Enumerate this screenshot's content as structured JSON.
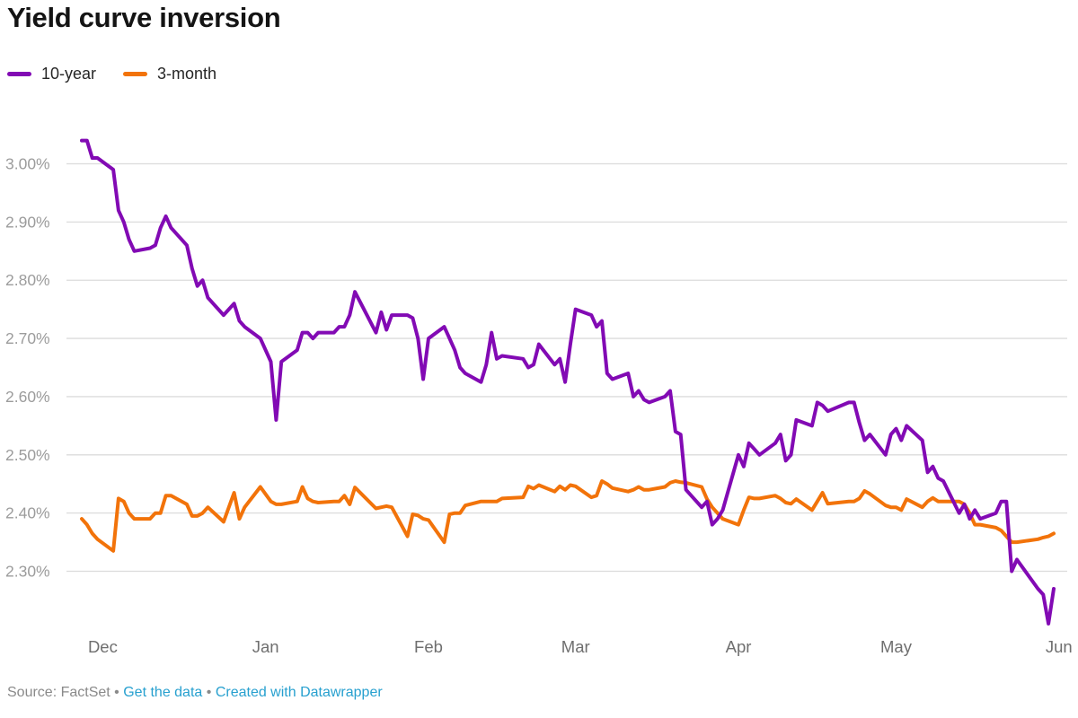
{
  "header": {
    "title": "Yield curve inversion"
  },
  "legend": {
    "items": [
      {
        "label": "10-year",
        "color": "#820ab4"
      },
      {
        "label": "3-month",
        "color": "#f2730a"
      }
    ]
  },
  "footer": {
    "source_text": "Source: FactSet",
    "separator": "•",
    "link_get_data": "Get the data",
    "link_datawrapper": "Created with Datawrapper",
    "link_color": "#27a0cf",
    "text_color": "#8a8a8a"
  },
  "chart_data": {
    "type": "line",
    "title": "Yield curve inversion",
    "grid": "horizontal",
    "legend_position": "top-left",
    "y_unit": "%",
    "ylim": [
      2.18,
      3.07
    ],
    "xlim_days": [
      0,
      186
    ],
    "x_unit": "calendar-day offset from first observation (late Nov); points are weekday yields",
    "x_ticks": [
      {
        "label": "Dec",
        "day": 4
      },
      {
        "label": "Jan",
        "day": 35
      },
      {
        "label": "Feb",
        "day": 66
      },
      {
        "label": "Mar",
        "day": 94
      },
      {
        "label": "Apr",
        "day": 125
      },
      {
        "label": "May",
        "day": 155
      },
      {
        "label": "Jun",
        "day": 186
      }
    ],
    "y_ticks": [
      {
        "label": "3.00%",
        "value": 3.0
      },
      {
        "label": "2.90%",
        "value": 2.9
      },
      {
        "label": "2.80%",
        "value": 2.8
      },
      {
        "label": "2.70%",
        "value": 2.7
      },
      {
        "label": "2.60%",
        "value": 2.6
      },
      {
        "label": "2.50%",
        "value": 2.5
      },
      {
        "label": "2.40%",
        "value": 2.4
      },
      {
        "label": "2.30%",
        "value": 2.3
      }
    ],
    "x_days": [
      0,
      1,
      2,
      3,
      6,
      7,
      8,
      9,
      10,
      13,
      14,
      15,
      16,
      17,
      20,
      21,
      22,
      23,
      24,
      27,
      29,
      30,
      31,
      34,
      36,
      37,
      38,
      41,
      42,
      43,
      44,
      45,
      48,
      49,
      50,
      51,
      52,
      56,
      57,
      58,
      59,
      62,
      63,
      64,
      65,
      66,
      69,
      70,
      71,
      72,
      73,
      76,
      77,
      78,
      79,
      80,
      84,
      85,
      86,
      87,
      90,
      91,
      92,
      93,
      94,
      97,
      98,
      99,
      100,
      101,
      104,
      105,
      106,
      107,
      108,
      111,
      112,
      113,
      114,
      115,
      118,
      119,
      120,
      121,
      122,
      125,
      126,
      127,
      128,
      129,
      132,
      133,
      134,
      135,
      136,
      139,
      140,
      141,
      142,
      146,
      147,
      148,
      149,
      150,
      153,
      154,
      155,
      156,
      157,
      160,
      161,
      162,
      163,
      164,
      167,
      168,
      169,
      170,
      171,
      174,
      175,
      176,
      177,
      178,
      182,
      183,
      184,
      185
    ],
    "series": [
      {
        "name": "10-year",
        "color": "#820ab4",
        "values": [
          3.04,
          3.04,
          3.01,
          3.01,
          2.99,
          2.92,
          2.9,
          2.87,
          2.85,
          2.855,
          2.86,
          2.89,
          2.91,
          2.89,
          2.86,
          2.82,
          2.79,
          2.8,
          2.77,
          2.74,
          2.76,
          2.73,
          2.72,
          2.7,
          2.66,
          2.56,
          2.66,
          2.68,
          2.71,
          2.71,
          2.7,
          2.71,
          2.71,
          2.72,
          2.72,
          2.74,
          2.78,
          2.71,
          2.745,
          2.715,
          2.74,
          2.74,
          2.735,
          2.7,
          2.63,
          2.7,
          2.72,
          2.7,
          2.68,
          2.65,
          2.64,
          2.625,
          2.655,
          2.71,
          2.665,
          2.67,
          2.665,
          2.65,
          2.655,
          2.69,
          2.655,
          2.665,
          2.625,
          2.69,
          2.75,
          2.74,
          2.72,
          2.73,
          2.64,
          2.63,
          2.64,
          2.6,
          2.61,
          2.595,
          2.59,
          2.6,
          2.61,
          2.54,
          2.535,
          2.44,
          2.41,
          2.42,
          2.38,
          2.39,
          2.405,
          2.5,
          2.48,
          2.52,
          2.51,
          2.5,
          2.52,
          2.535,
          2.49,
          2.5,
          2.56,
          2.55,
          2.59,
          2.585,
          2.575,
          2.59,
          2.59,
          2.555,
          2.525,
          2.535,
          2.5,
          2.535,
          2.545,
          2.525,
          2.55,
          2.525,
          2.47,
          2.48,
          2.46,
          2.455,
          2.4,
          2.415,
          2.39,
          2.405,
          2.39,
          2.4,
          2.42,
          2.42,
          2.3,
          2.32,
          2.27,
          2.26,
          2.21,
          2.27
        ]
      },
      {
        "name": "3-month",
        "color": "#f2730a",
        "values": [
          2.39,
          2.38,
          2.365,
          2.355,
          2.335,
          2.425,
          2.42,
          2.4,
          2.39,
          2.39,
          2.4,
          2.4,
          2.43,
          2.43,
          2.415,
          2.395,
          2.395,
          2.4,
          2.41,
          2.385,
          2.435,
          2.39,
          2.41,
          2.445,
          2.42,
          2.415,
          2.415,
          2.42,
          2.445,
          2.425,
          2.42,
          2.418,
          2.42,
          2.42,
          2.43,
          2.415,
          2.444,
          2.408,
          2.41,
          2.412,
          2.41,
          2.36,
          2.398,
          2.396,
          2.39,
          2.388,
          2.35,
          2.398,
          2.4,
          2.4,
          2.413,
          2.42,
          2.42,
          2.42,
          2.42,
          2.425,
          2.427,
          2.446,
          2.442,
          2.448,
          2.437,
          2.446,
          2.44,
          2.448,
          2.446,
          2.427,
          2.43,
          2.455,
          2.45,
          2.443,
          2.437,
          2.44,
          2.445,
          2.44,
          2.44,
          2.445,
          2.452,
          2.455,
          2.453,
          2.452,
          2.445,
          2.424,
          2.41,
          2.4,
          2.39,
          2.38,
          2.405,
          2.427,
          2.425,
          2.425,
          2.43,
          2.425,
          2.418,
          2.416,
          2.424,
          2.405,
          2.42,
          2.435,
          2.416,
          2.42,
          2.42,
          2.425,
          2.438,
          2.433,
          2.413,
          2.41,
          2.41,
          2.405,
          2.424,
          2.41,
          2.42,
          2.426,
          2.42,
          2.42,
          2.42,
          2.415,
          2.4,
          2.38,
          2.38,
          2.375,
          2.37,
          2.36,
          2.35,
          2.35,
          2.355,
          2.358,
          2.36,
          2.365
        ]
      }
    ]
  }
}
